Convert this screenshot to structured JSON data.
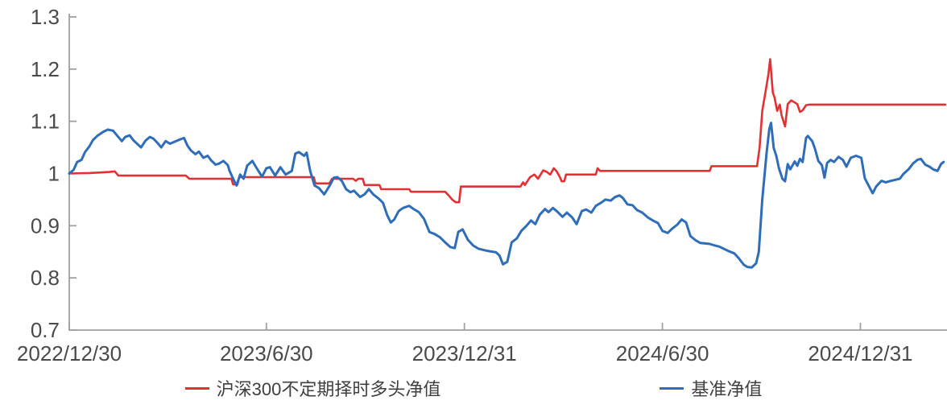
{
  "chart_data": {
    "type": "line",
    "title": "",
    "legend_position": "bottom",
    "grid": false,
    "axis_color": "#a0a0a0",
    "label_color": "#4a4a4a",
    "y_axis": {
      "min": 0.7,
      "max": 1.3,
      "ticks": [
        {
          "label": "0.7",
          "value": 0.7
        },
        {
          "label": "0.8",
          "value": 0.8
        },
        {
          "label": "0.9",
          "value": 0.9
        },
        {
          "label": "1",
          "value": 1.0
        },
        {
          "label": "1.1",
          "value": 1.1
        },
        {
          "label": "1.2",
          "value": 1.2
        },
        {
          "label": "1.3",
          "value": 1.3
        }
      ]
    },
    "x_axis": {
      "ticks": [
        {
          "label": "2022/12/30",
          "f": 0.0
        },
        {
          "label": "2023/6/30",
          "f": 0.225
        },
        {
          "label": "2023/12/31",
          "f": 0.451
        },
        {
          "label": "2024/6/30",
          "f": 0.677
        },
        {
          "label": "2024/12/31",
          "f": 0.903
        }
      ]
    },
    "series": [
      {
        "key": "strategy",
        "name": "沪深300不定期择时多头净值",
        "color": "#e23132",
        "stroke_width": 2.6,
        "points": [
          [
            0.0,
            1.0
          ],
          [
            0.023,
            1.001
          ],
          [
            0.046,
            1.003
          ],
          [
            0.052,
            1.004
          ],
          [
            0.056,
            0.996
          ],
          [
            0.133,
            0.996
          ],
          [
            0.137,
            0.99
          ],
          [
            0.185,
            0.99
          ],
          [
            0.187,
            0.979
          ],
          [
            0.192,
            0.979
          ],
          [
            0.194,
            0.993
          ],
          [
            0.279,
            0.993
          ],
          [
            0.281,
            0.981
          ],
          [
            0.297,
            0.981
          ],
          [
            0.3,
            0.99
          ],
          [
            0.324,
            0.99
          ],
          [
            0.327,
            0.986
          ],
          [
            0.33,
            0.99
          ],
          [
            0.335,
            0.99
          ],
          [
            0.337,
            0.978
          ],
          [
            0.354,
            0.978
          ],
          [
            0.356,
            0.97
          ],
          [
            0.388,
            0.97
          ],
          [
            0.39,
            0.965
          ],
          [
            0.429,
            0.965
          ],
          [
            0.433,
            0.958
          ],
          [
            0.437,
            0.95
          ],
          [
            0.441,
            0.945
          ],
          [
            0.445,
            0.945
          ],
          [
            0.447,
            0.975
          ],
          [
            0.515,
            0.975
          ],
          [
            0.518,
            0.983
          ],
          [
            0.52,
            0.978
          ],
          [
            0.526,
            0.993
          ],
          [
            0.531,
            0.998
          ],
          [
            0.535,
            0.99
          ],
          [
            0.541,
            1.006
          ],
          [
            0.545,
            1.003
          ],
          [
            0.549,
            0.998
          ],
          [
            0.553,
            1.01
          ],
          [
            0.556,
            1.005
          ],
          [
            0.56,
            0.993
          ],
          [
            0.562,
            0.985
          ],
          [
            0.565,
            0.985
          ],
          [
            0.567,
            0.998
          ],
          [
            0.601,
            0.998
          ],
          [
            0.603,
            1.01
          ],
          [
            0.606,
            1.005
          ],
          [
            0.731,
            1.005
          ],
          [
            0.733,
            1.014
          ],
          [
            0.785,
            1.014
          ],
          [
            0.788,
            1.05
          ],
          [
            0.791,
            1.12
          ],
          [
            0.795,
            1.16
          ],
          [
            0.798,
            1.19
          ],
          [
            0.8,
            1.219
          ],
          [
            0.803,
            1.155
          ],
          [
            0.805,
            1.146
          ],
          [
            0.808,
            1.12
          ],
          [
            0.811,
            1.132
          ],
          [
            0.813,
            1.112
          ],
          [
            0.817,
            1.09
          ],
          [
            0.82,
            1.133
          ],
          [
            0.824,
            1.14
          ],
          [
            0.828,
            1.136
          ],
          [
            0.831,
            1.133
          ],
          [
            0.834,
            1.118
          ],
          [
            0.837,
            1.121
          ],
          [
            0.841,
            1.131
          ],
          [
            0.845,
            1.132
          ],
          [
            1.0,
            1.132
          ]
        ]
      },
      {
        "key": "benchmark",
        "name": "基准净值",
        "color": "#2f6db8",
        "stroke_width": 3.0,
        "points": [
          [
            0.0,
            1.0
          ],
          [
            0.005,
            1.007
          ],
          [
            0.009,
            1.022
          ],
          [
            0.014,
            1.026
          ],
          [
            0.018,
            1.041
          ],
          [
            0.023,
            1.052
          ],
          [
            0.027,
            1.064
          ],
          [
            0.032,
            1.072
          ],
          [
            0.039,
            1.08
          ],
          [
            0.044,
            1.084
          ],
          [
            0.05,
            1.082
          ],
          [
            0.055,
            1.072
          ],
          [
            0.06,
            1.062
          ],
          [
            0.064,
            1.07
          ],
          [
            0.069,
            1.073
          ],
          [
            0.073,
            1.064
          ],
          [
            0.078,
            1.056
          ],
          [
            0.082,
            1.05
          ],
          [
            0.087,
            1.063
          ],
          [
            0.092,
            1.07
          ],
          [
            0.096,
            1.067
          ],
          [
            0.101,
            1.058
          ],
          [
            0.105,
            1.05
          ],
          [
            0.11,
            1.062
          ],
          [
            0.115,
            1.057
          ],
          [
            0.119,
            1.06
          ],
          [
            0.126,
            1.065
          ],
          [
            0.131,
            1.068
          ],
          [
            0.135,
            1.053
          ],
          [
            0.139,
            1.044
          ],
          [
            0.144,
            1.037
          ],
          [
            0.148,
            1.042
          ],
          [
            0.153,
            1.03
          ],
          [
            0.158,
            1.034
          ],
          [
            0.162,
            1.025
          ],
          [
            0.167,
            1.017
          ],
          [
            0.171,
            1.019
          ],
          [
            0.176,
            1.024
          ],
          [
            0.181,
            1.016
          ],
          [
            0.183,
            1.005
          ],
          [
            0.187,
            0.99
          ],
          [
            0.191,
            0.977
          ],
          [
            0.195,
            0.998
          ],
          [
            0.199,
            0.99
          ],
          [
            0.203,
            1.015
          ],
          [
            0.209,
            1.024
          ],
          [
            0.214,
            1.01
          ],
          [
            0.22,
            0.994
          ],
          [
            0.225,
            1.01
          ],
          [
            0.229,
            1.012
          ],
          [
            0.235,
            0.996
          ],
          [
            0.241,
            1.012
          ],
          [
            0.247,
            0.998
          ],
          [
            0.254,
            1.005
          ],
          [
            0.258,
            1.038
          ],
          [
            0.262,
            1.041
          ],
          [
            0.268,
            1.034
          ],
          [
            0.271,
            1.04
          ],
          [
            0.275,
            1.005
          ],
          [
            0.28,
            0.977
          ],
          [
            0.285,
            0.972
          ],
          [
            0.291,
            0.96
          ],
          [
            0.297,
            0.976
          ],
          [
            0.302,
            0.992
          ],
          [
            0.306,
            0.993
          ],
          [
            0.311,
            0.986
          ],
          [
            0.316,
            0.97
          ],
          [
            0.321,
            0.964
          ],
          [
            0.325,
            0.967
          ],
          [
            0.332,
            0.955
          ],
          [
            0.337,
            0.96
          ],
          [
            0.342,
            0.97
          ],
          [
            0.347,
            0.96
          ],
          [
            0.353,
            0.952
          ],
          [
            0.358,
            0.944
          ],
          [
            0.363,
            0.92
          ],
          [
            0.367,
            0.906
          ],
          [
            0.371,
            0.912
          ],
          [
            0.376,
            0.928
          ],
          [
            0.381,
            0.934
          ],
          [
            0.388,
            0.938
          ],
          [
            0.393,
            0.932
          ],
          [
            0.399,
            0.926
          ],
          [
            0.405,
            0.913
          ],
          [
            0.411,
            0.888
          ],
          [
            0.417,
            0.884
          ],
          [
            0.423,
            0.878
          ],
          [
            0.429,
            0.868
          ],
          [
            0.435,
            0.859
          ],
          [
            0.44,
            0.857
          ],
          [
            0.444,
            0.888
          ],
          [
            0.449,
            0.893
          ],
          [
            0.455,
            0.873
          ],
          [
            0.461,
            0.862
          ],
          [
            0.467,
            0.856
          ],
          [
            0.474,
            0.853
          ],
          [
            0.48,
            0.851
          ],
          [
            0.487,
            0.849
          ],
          [
            0.491,
            0.843
          ],
          [
            0.495,
            0.826
          ],
          [
            0.5,
            0.831
          ],
          [
            0.505,
            0.868
          ],
          [
            0.511,
            0.876
          ],
          [
            0.516,
            0.89
          ],
          [
            0.522,
            0.9
          ],
          [
            0.527,
            0.91
          ],
          [
            0.532,
            0.903
          ],
          [
            0.537,
            0.921
          ],
          [
            0.543,
            0.932
          ],
          [
            0.547,
            0.926
          ],
          [
            0.552,
            0.934
          ],
          [
            0.557,
            0.927
          ],
          [
            0.563,
            0.917
          ],
          [
            0.568,
            0.925
          ],
          [
            0.574,
            0.916
          ],
          [
            0.579,
            0.903
          ],
          [
            0.585,
            0.928
          ],
          [
            0.59,
            0.931
          ],
          [
            0.596,
            0.925
          ],
          [
            0.601,
            0.938
          ],
          [
            0.607,
            0.944
          ],
          [
            0.612,
            0.95
          ],
          [
            0.618,
            0.948
          ],
          [
            0.623,
            0.955
          ],
          [
            0.628,
            0.958
          ],
          [
            0.632,
            0.953
          ],
          [
            0.637,
            0.941
          ],
          [
            0.643,
            0.939
          ],
          [
            0.648,
            0.93
          ],
          [
            0.654,
            0.925
          ],
          [
            0.661,
            0.915
          ],
          [
            0.666,
            0.91
          ],
          [
            0.672,
            0.905
          ],
          [
            0.677,
            0.89
          ],
          [
            0.683,
            0.886
          ],
          [
            0.688,
            0.894
          ],
          [
            0.694,
            0.902
          ],
          [
            0.699,
            0.912
          ],
          [
            0.704,
            0.906
          ],
          [
            0.709,
            0.88
          ],
          [
            0.715,
            0.872
          ],
          [
            0.72,
            0.867
          ],
          [
            0.726,
            0.866
          ],
          [
            0.731,
            0.865
          ],
          [
            0.737,
            0.862
          ],
          [
            0.742,
            0.86
          ],
          [
            0.748,
            0.855
          ],
          [
            0.753,
            0.851
          ],
          [
            0.759,
            0.847
          ],
          [
            0.764,
            0.838
          ],
          [
            0.77,
            0.825
          ],
          [
            0.774,
            0.821
          ],
          [
            0.779,
            0.82
          ],
          [
            0.784,
            0.828
          ],
          [
            0.787,
            0.85
          ],
          [
            0.791,
            0.95
          ],
          [
            0.796,
            1.04
          ],
          [
            0.799,
            1.085
          ],
          [
            0.801,
            1.097
          ],
          [
            0.804,
            1.049
          ],
          [
            0.807,
            1.034
          ],
          [
            0.81,
            1.01
          ],
          [
            0.814,
            0.99
          ],
          [
            0.817,
            0.985
          ],
          [
            0.82,
            1.018
          ],
          [
            0.823,
            1.008
          ],
          [
            0.828,
            1.023
          ],
          [
            0.831,
            1.015
          ],
          [
            0.834,
            1.028
          ],
          [
            0.837,
            1.022
          ],
          [
            0.841,
            1.068
          ],
          [
            0.843,
            1.072
          ],
          [
            0.848,
            1.062
          ],
          [
            0.851,
            1.048
          ],
          [
            0.855,
            1.024
          ],
          [
            0.859,
            1.016
          ],
          [
            0.862,
            0.992
          ],
          [
            0.865,
            1.02
          ],
          [
            0.869,
            1.026
          ],
          [
            0.873,
            1.022
          ],
          [
            0.878,
            1.032
          ],
          [
            0.883,
            1.026
          ],
          [
            0.887,
            1.013
          ],
          [
            0.892,
            1.03
          ],
          [
            0.898,
            1.034
          ],
          [
            0.904,
            1.03
          ],
          [
            0.908,
            0.991
          ],
          [
            0.912,
            0.978
          ],
          [
            0.917,
            0.962
          ],
          [
            0.921,
            0.975
          ],
          [
            0.927,
            0.986
          ],
          [
            0.932,
            0.983
          ],
          [
            0.938,
            0.986
          ],
          [
            0.943,
            0.988
          ],
          [
            0.948,
            0.99
          ],
          [
            0.952,
            0.999
          ],
          [
            0.958,
            1.008
          ],
          [
            0.963,
            1.019
          ],
          [
            0.968,
            1.026
          ],
          [
            0.972,
            1.028
          ],
          [
            0.977,
            1.017
          ],
          [
            0.982,
            1.013
          ],
          [
            0.986,
            1.008
          ],
          [
            0.991,
            1.005
          ],
          [
            0.995,
            1.018
          ],
          [
            0.998,
            1.022
          ]
        ]
      }
    ]
  }
}
